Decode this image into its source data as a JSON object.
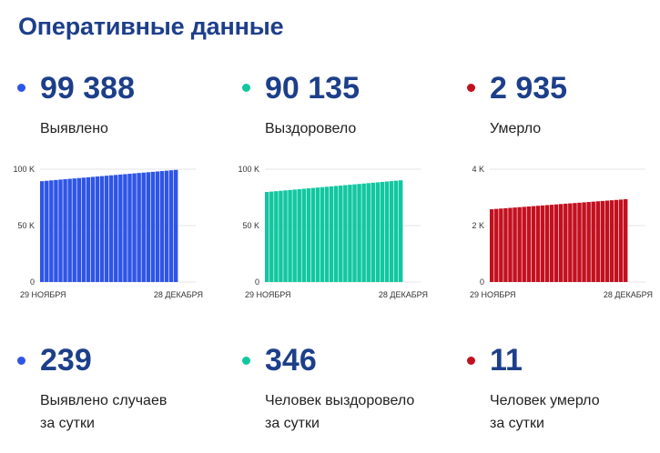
{
  "page": {
    "title": "Оперативные данные"
  },
  "totals": [
    {
      "value": "99 388",
      "label": "Выявлено",
      "color": "#2f55e6"
    },
    {
      "value": "90 135",
      "label": "Выздоровело",
      "color": "#12c7a0"
    },
    {
      "value": "2 935",
      "label": "Умерло",
      "color": "#c3101f"
    }
  ],
  "daily": [
    {
      "value": "239",
      "label_line1": "Выявлено случаев",
      "label_line2": "за сутки",
      "color": "#2f55e6"
    },
    {
      "value": "346",
      "label_line1": "Человек выздоровело",
      "label_line2": "за сутки",
      "color": "#12c7a0"
    },
    {
      "value": "11",
      "label_line1": "Человек умерло",
      "label_line2": "за сутки",
      "color": "#c3101f"
    }
  ],
  "chart_data": [
    {
      "type": "bar",
      "series": [
        {
          "name": "Выявлено",
          "color": "#2f55e6",
          "start": 89400,
          "end": 99388,
          "count": 30
        }
      ],
      "yticks": [
        0,
        50000,
        100000
      ],
      "yticklabels": [
        "0",
        "50 K",
        "100 K"
      ],
      "ylim": [
        0,
        100000
      ],
      "xlabels": [
        "29 НОЯБРЯ",
        "28 ДЕКАБРЯ"
      ]
    },
    {
      "type": "bar",
      "series": [
        {
          "name": "Выздоровело",
          "color": "#12c7a0",
          "start": 79800,
          "end": 90135,
          "count": 30
        }
      ],
      "yticks": [
        0,
        50000,
        100000
      ],
      "yticklabels": [
        "0",
        "50 K",
        "100 K"
      ],
      "ylim": [
        0,
        100000
      ],
      "xlabels": [
        "29 НОЯБРЯ",
        "28 ДЕКАБРЯ"
      ]
    },
    {
      "type": "bar",
      "series": [
        {
          "name": "Умерло",
          "color": "#c3101f",
          "start": 2580,
          "end": 2935,
          "count": 30
        }
      ],
      "yticks": [
        0,
        2000,
        4000
      ],
      "yticklabels": [
        "0",
        "2 K",
        "4 K"
      ],
      "ylim": [
        0,
        4000
      ],
      "xlabels": [
        "29 НОЯБРЯ",
        "28 ДЕКАБРЯ"
      ]
    }
  ]
}
